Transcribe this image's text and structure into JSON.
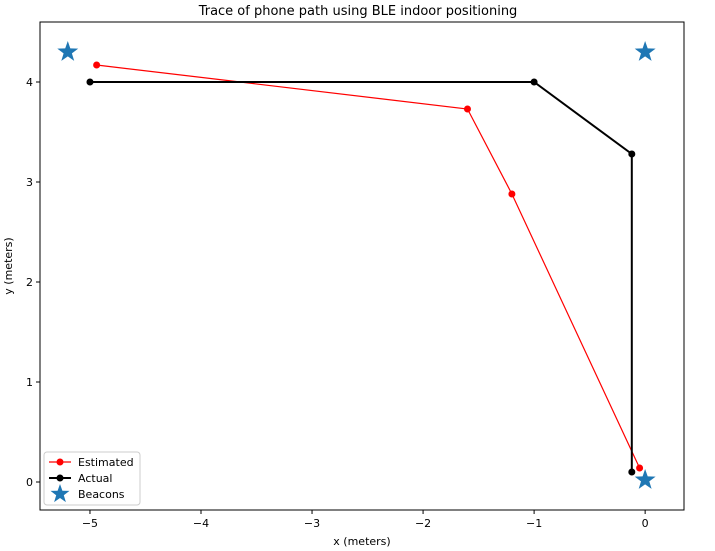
{
  "chart_data": {
    "type": "scatter",
    "title": "Trace of phone path using BLE indoor positioning",
    "xlabel": "x (meters)",
    "ylabel": "y (meters)",
    "xlim": [
      -5.45,
      0.35
    ],
    "ylim": [
      -0.28,
      4.6
    ],
    "xticks": [
      -5,
      -4,
      -3,
      -2,
      -1,
      0
    ],
    "yticks": [
      0,
      1,
      2,
      3,
      4
    ],
    "xtick_labels": [
      "−5",
      "−4",
      "−3",
      "−2",
      "−1",
      "0"
    ],
    "ytick_labels": [
      "0",
      "1",
      "2",
      "3",
      "4"
    ],
    "grid": false,
    "legend_position": "lower-left",
    "series": [
      {
        "name": "Estimated",
        "kind": "line-marker",
        "color": "#ff0000",
        "x": [
          -4.94,
          -1.6,
          -1.2,
          -0.05
        ],
        "y": [
          4.17,
          3.73,
          2.88,
          0.14
        ]
      },
      {
        "name": "Actual",
        "kind": "line-marker",
        "color": "#000000",
        "x": [
          -5.0,
          -1.0,
          -0.12,
          -0.12
        ],
        "y": [
          4.0,
          4.0,
          3.28,
          0.1
        ]
      },
      {
        "name": "Beacons",
        "kind": "star",
        "color": "#1f77b4",
        "x": [
          -5.2,
          0.0,
          0.0
        ],
        "y": [
          4.3,
          4.3,
          0.02
        ]
      }
    ]
  }
}
